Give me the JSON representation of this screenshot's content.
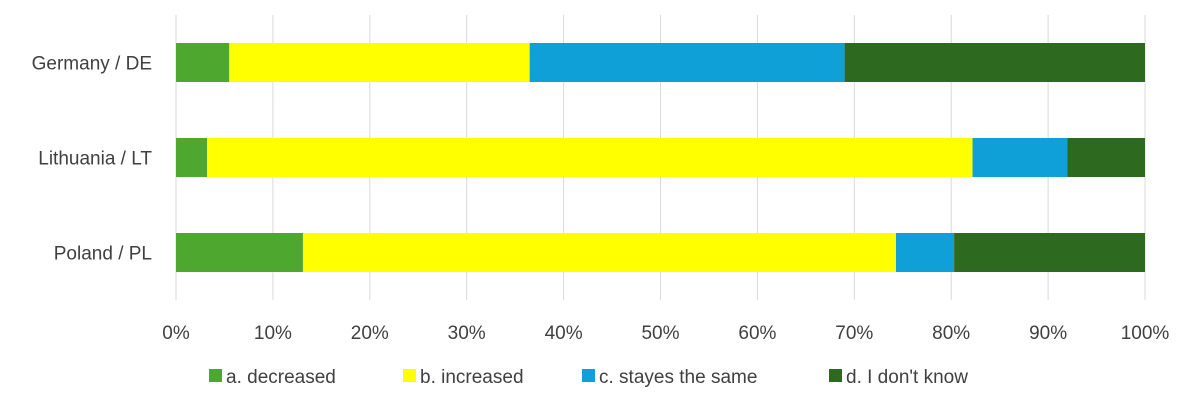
{
  "chart_data": {
    "type": "bar",
    "orientation": "horizontal",
    "stacked": "percent",
    "categories": [
      "Germany / DE",
      "Lithuania / LT",
      "Poland / PL"
    ],
    "series": [
      {
        "name": "a. decreased",
        "values": [
          5.5,
          3.2,
          13.1
        ],
        "color": "#4ea72e"
      },
      {
        "name": "b. increased",
        "values": [
          31.0,
          79.0,
          61.2
        ],
        "color": "#ffff00"
      },
      {
        "name": "c. stayes the same",
        "values": [
          32.5,
          9.8,
          6.0
        ],
        "color": "#10a0d8"
      },
      {
        "name": "d. I don't know",
        "values": [
          31.0,
          8.0,
          19.7
        ],
        "color": "#2d6a1f"
      }
    ],
    "x_ticks": [
      "0%",
      "10%",
      "20%",
      "30%",
      "40%",
      "50%",
      "60%",
      "70%",
      "80%",
      "90%",
      "100%"
    ],
    "xlim": [
      0,
      100
    ],
    "grid": true,
    "legend_position": "bottom"
  }
}
